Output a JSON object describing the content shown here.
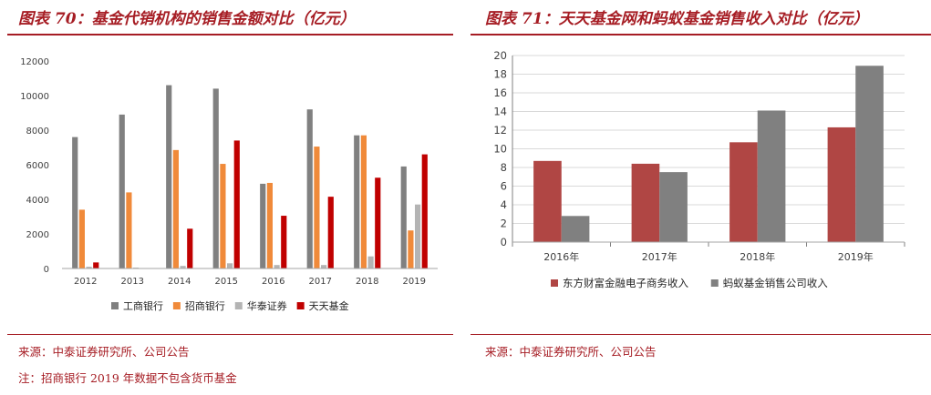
{
  "left": {
    "title": "图表 70：基金代销机构的销售金额对比（亿元）",
    "source": "来源：中泰证券研究所、公司公告",
    "note": "注：招商银行 2019 年数据不包含货币基金",
    "chart_data": {
      "type": "bar",
      "categories": [
        "2012",
        "2013",
        "2014",
        "2015",
        "2016",
        "2017",
        "2018",
        "2019"
      ],
      "series": [
        {
          "name": "工商银行",
          "color": "#808080",
          "values": [
            7600,
            8900,
            10600,
            10400,
            4900,
            9200,
            7700,
            5900
          ]
        },
        {
          "name": "招商银行",
          "color": "#f08a3a",
          "values": [
            3400,
            4400,
            6850,
            6050,
            4950,
            7050,
            7700,
            2200
          ]
        },
        {
          "name": "华泰证券",
          "color": "#b4b4b4",
          "values": [
            100,
            50,
            150,
            300,
            200,
            200,
            700,
            3700
          ]
        },
        {
          "name": "天天基金",
          "color": "#c00000",
          "values": [
            350,
            0,
            2300,
            7400,
            3050,
            4150,
            5250,
            6600
          ]
        }
      ],
      "ylim": [
        0,
        12000
      ],
      "yticks": [
        0,
        2000,
        4000,
        6000,
        8000,
        10000,
        12000
      ],
      "legend": "bottom",
      "grid": false
    }
  },
  "right": {
    "title": "图表 71：天天基金网和蚂蚁基金销售收入对比（亿元）",
    "source": "来源：中泰证券研究所、公司公告",
    "chart_data": {
      "type": "bar",
      "categories": [
        "2016年",
        "2017年",
        "2018年",
        "2019年"
      ],
      "series": [
        {
          "name": "东方财富金融电子商务收入",
          "color": "#b04644",
          "values": [
            8.7,
            8.4,
            10.7,
            12.3
          ]
        },
        {
          "name": "蚂蚁基金销售公司收入",
          "color": "#808080",
          "values": [
            2.8,
            7.5,
            14.1,
            18.9
          ]
        }
      ],
      "ylim": [
        0,
        20
      ],
      "yticks": [
        0,
        2,
        4,
        6,
        8,
        10,
        12,
        14,
        16,
        18,
        20
      ],
      "legend": "bottom",
      "grid": true
    }
  }
}
